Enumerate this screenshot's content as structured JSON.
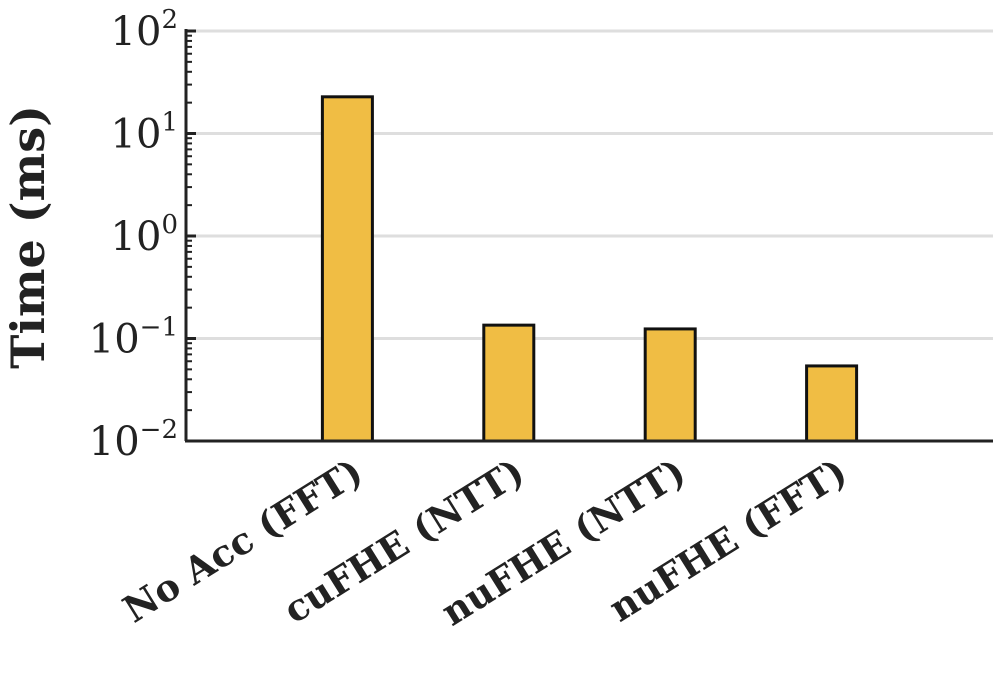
{
  "chart_data": {
    "type": "bar",
    "title": "",
    "xlabel": "",
    "ylabel": "Time (ms)",
    "yscale": "log",
    "ylim": [
      0.01,
      100
    ],
    "grid": "horizontal",
    "categories": [
      "No Acc (FFT)",
      "cuFHE (NTT)",
      "nuFHE (NTT)",
      "nuFHE (FFT)"
    ],
    "values": [
      22.8,
      0.135,
      0.124,
      0.054
    ],
    "yticks": [
      {
        "base": "10",
        "exp": "2",
        "value": 100
      },
      {
        "base": "10",
        "exp": "1",
        "value": 10
      },
      {
        "base": "10",
        "exp": "0",
        "value": 1
      },
      {
        "base": "10",
        "exp": "−1",
        "value": 0.1
      },
      {
        "base": "10",
        "exp": "−2",
        "value": 0.01
      }
    ],
    "colors": {
      "bar": "#f0bd44",
      "bar_edge": "#111111",
      "grid": "#dedede",
      "axis": "#222222"
    }
  }
}
